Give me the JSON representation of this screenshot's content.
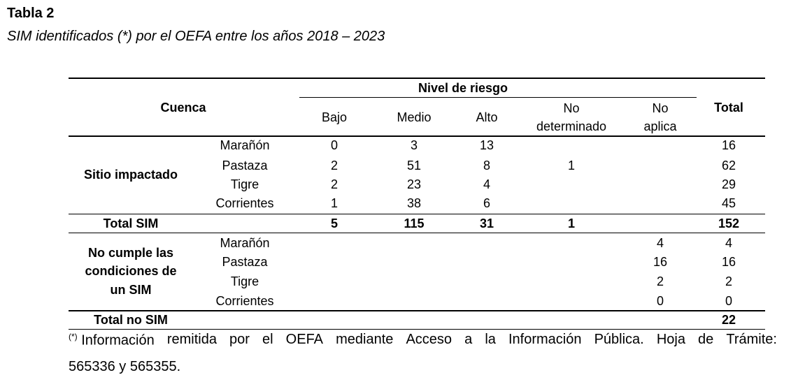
{
  "title": "Tabla 2",
  "subtitle": "SIM identificados (*) por el OEFA entre los años 2018 – 2023",
  "table": {
    "header": {
      "cuenca": "Cuenca",
      "nivel": "Nivel de riesgo",
      "bajo": "Bajo",
      "medio": "Medio",
      "alto": "Alto",
      "nd1": "No",
      "nd2": "determinado",
      "na1": "No",
      "na2": "aplica",
      "total": "Total"
    },
    "group1": {
      "label": "Sitio impactado",
      "rows": [
        {
          "name": "Marañón",
          "bajo": "0",
          "medio": "3",
          "alto": "13",
          "nd": "",
          "na": "",
          "total": "16"
        },
        {
          "name": "Pastaza",
          "bajo": "2",
          "medio": "51",
          "alto": "8",
          "nd": "1",
          "na": "",
          "total": "62"
        },
        {
          "name": "Tigre",
          "bajo": "2",
          "medio": "23",
          "alto": "4",
          "nd": "",
          "na": "",
          "total": "29"
        },
        {
          "name": "Corrientes",
          "bajo": "1",
          "medio": "38",
          "alto": "6",
          "nd": "",
          "na": "",
          "total": "45"
        }
      ],
      "total_row": {
        "label": "Total SIM",
        "bajo": "5",
        "medio": "115",
        "alto": "31",
        "nd": "1",
        "total": "152"
      }
    },
    "group2": {
      "label_l1": "No cumple las",
      "label_l2": "condiciones de",
      "label_l3": "un SIM",
      "rows": [
        {
          "name": "Marañón",
          "na": "4",
          "total": "4"
        },
        {
          "name": "Pastaza",
          "na": "16",
          "total": "16"
        },
        {
          "name": "Tigre",
          "na": "2",
          "total": "2"
        },
        {
          "name": "Corrientes",
          "na": "0",
          "total": "0"
        }
      ],
      "total_row": {
        "label": "Total no SIM",
        "total": "22"
      }
    }
  },
  "footnote": {
    "mark": "(*)",
    "words": [
      "Información",
      "remitida",
      "por",
      "el",
      "OEFA",
      "mediante",
      "Acceso",
      "a",
      "la",
      "Información",
      "Pública.",
      "Hoja",
      "de",
      "Trámite:"
    ],
    "line2": "565336 y 565355."
  }
}
